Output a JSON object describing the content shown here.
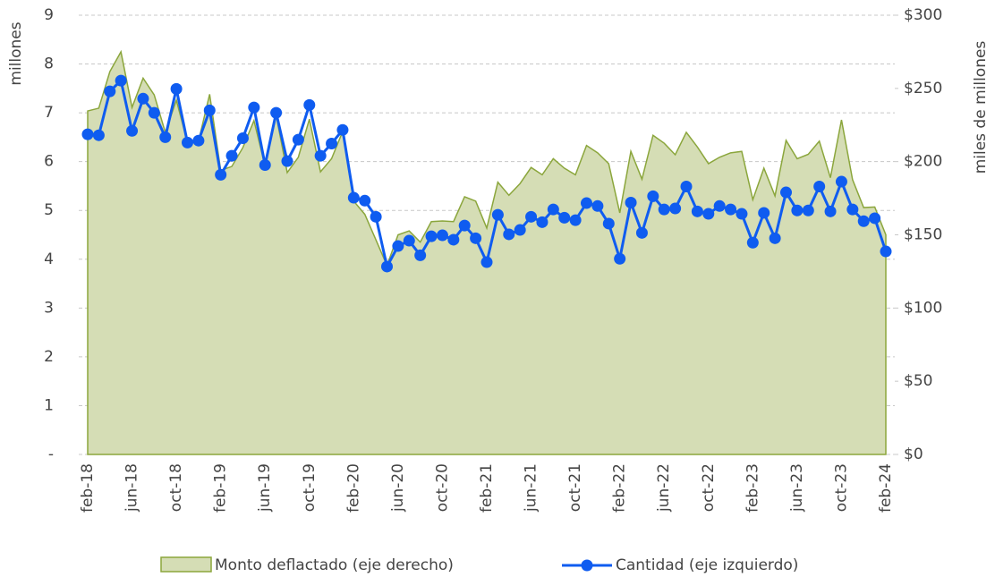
{
  "chart_data": {
    "type": "line",
    "ylabel": "millones",
    "y2label": "miles de millones",
    "ylim": [
      0,
      9
    ],
    "yticks": [
      {
        "value": 0,
        "label": "-"
      },
      1,
      2,
      3,
      4,
      5,
      6,
      7,
      8,
      9
    ],
    "y2lim": [
      0,
      300
    ],
    "y2ticks": [
      {
        "value": 0,
        "label": "$0"
      },
      {
        "value": 50,
        "label": "$50"
      },
      {
        "value": 100,
        "label": "$100"
      },
      {
        "value": 150,
        "label": "$150"
      },
      {
        "value": 200,
        "label": "$200"
      },
      {
        "value": 250,
        "label": "$250"
      },
      {
        "value": 300,
        "label": "$300"
      }
    ],
    "grid": true,
    "legend": "bottom",
    "categories": [
      "feb-18",
      null,
      null,
      null,
      "jun-18",
      null,
      null,
      null,
      "oct-18",
      null,
      null,
      null,
      "feb-19",
      null,
      null,
      null,
      "jun-19",
      null,
      null,
      null,
      "oct-19",
      null,
      null,
      null,
      "feb-20",
      null,
      null,
      null,
      "jun-20",
      null,
      null,
      null,
      "oct-20",
      null,
      null,
      null,
      "feb-21",
      null,
      null,
      null,
      "jun-21",
      null,
      null,
      null,
      "oct-21",
      null,
      null,
      null,
      "feb-22",
      null,
      null,
      null,
      "jun-22",
      null,
      null,
      null,
      "oct-22",
      null,
      null,
      null,
      "feb-23",
      null,
      null,
      null,
      "jun-23",
      null,
      null,
      null,
      "oct-23",
      null,
      null,
      null,
      "feb-24"
    ],
    "series": [
      {
        "name": "Monto deflactado (eje derecho)",
        "type": "area",
        "axis": "y2",
        "color": "#d5ddb5",
        "stroke": "#8ba63c",
        "values": [
          234.6,
          236.5,
          261.5,
          275,
          237,
          257,
          245.6,
          220,
          242,
          213,
          214,
          246,
          194,
          196.7,
          209.6,
          228,
          197,
          231.6,
          192.5,
          203,
          229,
          193,
          202,
          220.6,
          173,
          164,
          146.6,
          129,
          150,
          152.7,
          145,
          159,
          159.5,
          159,
          176,
          173,
          154.6,
          186,
          177,
          185,
          196,
          191,
          202,
          195.5,
          191,
          211,
          206,
          198.6,
          165,
          207,
          188,
          218,
          212.6,
          204.7,
          220,
          210,
          198.6,
          203,
          206,
          207,
          174,
          195.5,
          176.6,
          214.5,
          202,
          205,
          214,
          189,
          228.5,
          187.6,
          168.6,
          169,
          150
        ]
      },
      {
        "name": "Cantidad (eje izquierdo)",
        "type": "line",
        "axis": "y",
        "color": "#0f5cf0",
        "values": [
          6.56,
          6.54,
          7.44,
          7.66,
          6.63,
          7.29,
          7.0,
          6.5,
          7.49,
          6.39,
          6.43,
          7.05,
          5.73,
          6.12,
          6.48,
          7.11,
          5.93,
          7.0,
          6.01,
          6.45,
          7.16,
          6.12,
          6.37,
          6.65,
          5.26,
          5.2,
          4.87,
          3.85,
          4.27,
          4.38,
          4.08,
          4.47,
          4.49,
          4.4,
          4.69,
          4.43,
          3.94,
          4.91,
          4.51,
          4.6,
          4.87,
          4.76,
          5.02,
          4.85,
          4.8,
          5.15,
          5.09,
          4.73,
          4.01,
          5.16,
          4.54,
          5.29,
          5.02,
          5.04,
          5.49,
          4.98,
          4.93,
          5.09,
          5.02,
          4.93,
          4.34,
          4.95,
          4.43,
          5.37,
          5.0,
          5.0,
          5.49,
          4.98,
          5.59,
          5.02,
          4.78,
          4.84,
          4.16
        ]
      }
    ]
  }
}
